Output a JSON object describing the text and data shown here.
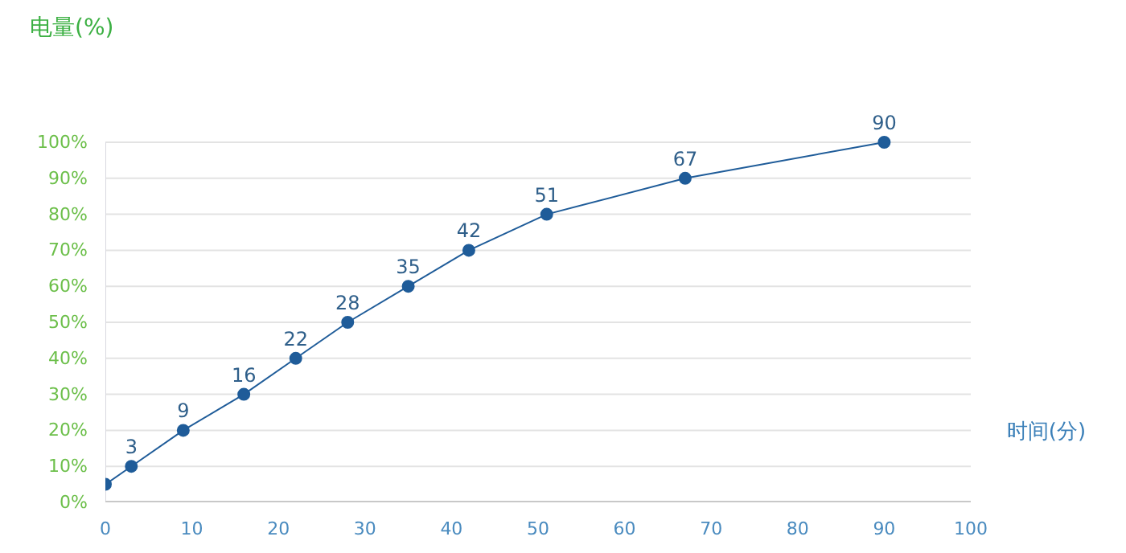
{
  "chart_data": {
    "type": "line",
    "ylabel": "电量(%)",
    "xlabel": "时间(分)",
    "x": [
      0,
      3,
      9,
      16,
      22,
      28,
      35,
      42,
      51,
      67,
      90
    ],
    "series": [
      {
        "color": "#1f5c99",
        "values": [
          5,
          10,
          20,
          30,
          40,
          50,
          60,
          70,
          80,
          90,
          100
        ]
      }
    ],
    "annotations": [
      {
        "text": "3",
        "x": 3,
        "y": 10
      },
      {
        "text": "9",
        "x": 9,
        "y": 20
      },
      {
        "text": "16",
        "x": 16,
        "y": 30
      },
      {
        "text": "22",
        "x": 22,
        "y": 40
      },
      {
        "text": "28",
        "x": 28,
        "y": 50
      },
      {
        "text": "35",
        "x": 35,
        "y": 60
      },
      {
        "text": "42",
        "x": 42,
        "y": 70
      },
      {
        "text": "51",
        "x": 51,
        "y": 80
      },
      {
        "text": "67",
        "x": 67,
        "y": 90
      },
      {
        "text": "90",
        "x": 90,
        "y": 100
      }
    ],
    "xlim": [
      0,
      100
    ],
    "xticks": [
      0,
      10,
      20,
      30,
      40,
      50,
      60,
      70,
      80,
      90,
      100
    ],
    "ylim": [
      0,
      100
    ],
    "yticks": [
      {
        "value": 0,
        "label": "0%"
      },
      {
        "value": 10,
        "label": "10%"
      },
      {
        "value": 20,
        "label": "20%"
      },
      {
        "value": 30,
        "label": "30%"
      },
      {
        "value": 40,
        "label": "40%"
      },
      {
        "value": 50,
        "label": "50%"
      },
      {
        "value": 60,
        "label": "60%"
      },
      {
        "value": 70,
        "label": "70%"
      },
      {
        "value": 80,
        "label": "80%"
      },
      {
        "value": 90,
        "label": "90%"
      },
      {
        "value": 100,
        "label": "100%"
      }
    ],
    "grid": "y",
    "marker": "circle",
    "line_style": "solid"
  }
}
